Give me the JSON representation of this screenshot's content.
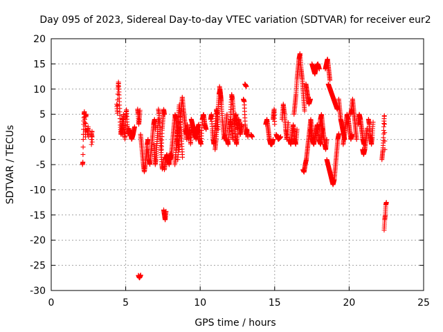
{
  "chart_data": {
    "type": "scatter",
    "title": "Day 095 of 2023, Sidereal Day-to-day VTEC variation (SDTVAR) for receiver eur2",
    "xlabel": "GPS time / hours",
    "ylabel": "SDTVAR / TECUs",
    "xlim": [
      0,
      25
    ],
    "ylim": [
      -30,
      20
    ],
    "xticks": [
      0,
      5,
      10,
      15,
      20,
      25
    ],
    "yticks": [
      -30,
      -25,
      -20,
      -15,
      -10,
      -5,
      0,
      5,
      10,
      15,
      20
    ],
    "grid": true,
    "marker": "+",
    "colors": {
      "series": "#ff0000",
      "axes": "#000000",
      "grid": "#a0a0a0"
    },
    "series": [
      {
        "name": "SDTVAR",
        "segments": [
          {
            "t0": 2.1,
            "t1": 2.35,
            "v": [
              -5,
              -4.5,
              0,
              3,
              5,
              5.5,
              4,
              2,
              0.5,
              4.5,
              5
            ]
          },
          {
            "t0": 2.45,
            "t1": 2.5,
            "v": [
              1,
              2.5,
              0.5
            ]
          },
          {
            "t0": 2.7,
            "t1": 2.75,
            "v": [
              -1,
              1.5,
              0,
              2,
              -0.5
            ]
          },
          {
            "t0": 4.4,
            "t1": 4.75,
            "v": [
              7,
              5,
              10,
              11.5,
              9,
              6,
              3,
              1,
              2,
              4
            ]
          },
          {
            "t0": 4.75,
            "t1": 5.2,
            "v": [
              1,
              3,
              5,
              2,
              0,
              4,
              6,
              3,
              1,
              2
            ]
          },
          {
            "t0": 5.2,
            "t1": 5.6,
            "v": [
              2,
              1.5,
              0,
              1,
              2.5
            ]
          },
          {
            "t0": 5.8,
            "t1": 5.95,
            "v": [
              6,
              5,
              3,
              4,
              5.5
            ]
          },
          {
            "t0": 5.85,
            "t1": 6.0,
            "v": [
              -27,
              -27.5,
              -27
            ]
          },
          {
            "t0": 6.0,
            "t1": 6.5,
            "v": [
              1,
              -1,
              -3,
              -5,
              -6.5,
              -5,
              -3,
              -1,
              0
            ]
          },
          {
            "t0": 6.5,
            "t1": 7.0,
            "v": [
              -2,
              -4,
              -5,
              -3,
              -1,
              1,
              3,
              4,
              2
            ]
          },
          {
            "t0": 6.9,
            "t1": 7.2,
            "v": [
              -1,
              -3,
              -5,
              -4,
              -2,
              0,
              2,
              4
            ]
          },
          {
            "t0": 7.2,
            "t1": 7.5,
            "v": [
              6,
              5,
              3,
              1,
              -1,
              -3,
              -5,
              -6,
              -4
            ]
          },
          {
            "t0": 7.4,
            "t1": 7.6,
            "v": [
              -2,
              2,
              4,
              6,
              5
            ]
          },
          {
            "t0": 7.55,
            "t1": 7.7,
            "v": [
              -14,
              -15,
              -16,
              -14.5
            ]
          },
          {
            "t0": 7.6,
            "t1": 8.0,
            "v": [
              -6,
              -4,
              -3,
              -4,
              -5,
              -3
            ]
          },
          {
            "t0": 8.0,
            "t1": 8.5,
            "v": [
              -4,
              -3,
              -1,
              1,
              3,
              5,
              4,
              2,
              -1
            ]
          },
          {
            "t0": 8.3,
            "t1": 8.6,
            "v": [
              -5,
              -3,
              0,
              2,
              4,
              -2
            ]
          },
          {
            "t0": 8.4,
            "t1": 8.8,
            "v": [
              -2,
              0,
              3,
              5,
              7,
              5,
              2,
              0,
              -3
            ]
          },
          {
            "t0": 8.5,
            "t1": 9.1,
            "v": [
              -4,
              0,
              3,
              6,
              8.5,
              6,
              4,
              2,
              0
            ]
          },
          {
            "t0": 9.0,
            "t1": 9.5,
            "v": [
              2,
              1,
              3,
              0,
              2,
              -1,
              3,
              1
            ]
          },
          {
            "t0": 9.4,
            "t1": 9.9,
            "v": [
              4,
              3,
              2,
              1,
              0,
              2,
              3
            ]
          },
          {
            "t0": 9.8,
            "t1": 10.4,
            "v": [
              1,
              2,
              0,
              -1,
              4,
              5,
              3,
              2
            ]
          },
          {
            "t0": 10.7,
            "t1": 11.2,
            "v": [
              4,
              5,
              2,
              0,
              -1,
              1,
              3,
              6,
              5,
              2
            ]
          },
          {
            "t0": 11.0,
            "t1": 11.4,
            "v": [
              -2,
              0,
              3,
              6,
              9,
              10,
              8
            ]
          },
          {
            "t0": 11.3,
            "t1": 11.8,
            "v": [
              10.5,
              9,
              7,
              4,
              2,
              0,
              1,
              3,
              5
            ]
          },
          {
            "t0": 11.8,
            "t1": 12.2,
            "v": [
              0,
              -1,
              2,
              4,
              2,
              0
            ]
          },
          {
            "t0": 12.0,
            "t1": 12.5,
            "v": [
              3,
              6,
              9,
              8,
              6,
              4,
              2,
              0,
              -1,
              1
            ]
          },
          {
            "t0": 12.3,
            "t1": 12.8,
            "v": [
              3,
              5,
              2,
              4,
              1,
              3
            ]
          },
          {
            "t0": 12.9,
            "t1": 13.2,
            "v": [
              8,
              7.5,
              3,
              1,
              2,
              0.5
            ]
          },
          {
            "t0": 13.0,
            "t1": 13.1,
            "v": [
              11,
              10.5
            ]
          },
          {
            "t0": 13.4,
            "t1": 13.5,
            "v": [
              1,
              0.5
            ]
          },
          {
            "t0": 14.4,
            "t1": 14.9,
            "v": [
              3,
              4,
              2,
              0,
              -1,
              -1,
              0
            ]
          },
          {
            "t0": 14.9,
            "t1": 15.0,
            "v": [
              4,
              5,
              6,
              3
            ]
          },
          {
            "t0": 15.1,
            "t1": 15.4,
            "v": [
              1,
              0,
              0.5
            ]
          },
          {
            "t0": 15.5,
            "t1": 15.9,
            "v": [
              4,
              7,
              5,
              2,
              0,
              3
            ]
          },
          {
            "t0": 16.0,
            "t1": 16.5,
            "v": [
              0,
              -1,
              1,
              3,
              0,
              -1,
              2
            ]
          },
          {
            "t0": 16.3,
            "t1": 16.7,
            "v": [
              5,
              7,
              9,
              12,
              14,
              16,
              17
            ]
          },
          {
            "t0": 16.7,
            "t1": 17.0,
            "v": [
              17,
              14,
              12,
              9,
              6
            ]
          },
          {
            "t0": 16.9,
            "t1": 17.5,
            "v": [
              -6,
              -6.5,
              -5,
              -4,
              -2,
              0,
              2,
              4,
              2
            ]
          },
          {
            "t0": 17.1,
            "t1": 17.4,
            "v": [
              11,
              9,
              7,
              8
            ]
          },
          {
            "t0": 17.5,
            "t1": 18.0,
            "v": [
              15,
              14,
              13,
              14.5,
              15,
              14
            ]
          },
          {
            "t0": 17.4,
            "t1": 18.2,
            "v": [
              2,
              0,
              -1,
              1,
              3,
              0,
              -1,
              2
            ]
          },
          {
            "t0": 18.0,
            "t1": 18.5,
            "v": [
              2,
              4,
              5,
              3,
              1,
              -1,
              -2,
              0
            ]
          },
          {
            "t0": 18.4,
            "t1": 18.7,
            "v": [
              14,
              15,
              16,
              14,
              12
            ]
          },
          {
            "t0": 18.6,
            "t1": 19.2,
            "v": [
              11,
              10,
              9,
              8,
              7,
              6
            ]
          },
          {
            "t0": 18.5,
            "t1": 19.0,
            "v": [
              -4,
              -5,
              -6,
              -7,
              -8,
              -9,
              -8
            ]
          },
          {
            "t0": 19.0,
            "t1": 19.3,
            "v": [
              -8,
              -6,
              -4,
              -2,
              0,
              1
            ]
          },
          {
            "t0": 19.3,
            "t1": 19.7,
            "v": [
              8,
              6,
              4,
              3,
              2,
              1,
              0
            ]
          },
          {
            "t0": 19.6,
            "t1": 20.2,
            "v": [
              -1,
              1,
              3,
              5,
              4,
              2,
              0,
              1
            ]
          },
          {
            "t0": 20.1,
            "t1": 20.5,
            "v": [
              5,
              6,
              8,
              6,
              4,
              2,
              0
            ]
          },
          {
            "t0": 20.6,
            "t1": 21.0,
            "v": [
              3,
              5,
              4,
              2,
              0,
              -1
            ]
          },
          {
            "t0": 20.9,
            "t1": 21.2,
            "v": [
              -2,
              -3,
              -2,
              0,
              2
            ]
          },
          {
            "t0": 21.3,
            "t1": 21.6,
            "v": [
              4,
              3,
              1,
              0,
              -1,
              0.5,
              3
            ]
          },
          {
            "t0": 22.2,
            "t1": 22.4,
            "v": [
              -4,
              -3,
              -2,
              0,
              3,
              5,
              -2
            ]
          },
          {
            "t0": 22.35,
            "t1": 22.5,
            "v": [
              -18,
              -16,
              -15,
              -13,
              -12.5
            ]
          }
        ]
      }
    ]
  }
}
